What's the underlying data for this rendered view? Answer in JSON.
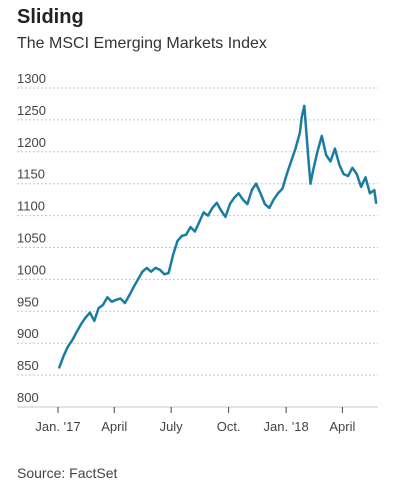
{
  "title": "Sliding",
  "subtitle": "The MSCI Emerging Markets Index",
  "source": "Source: FactSet",
  "chart_data": {
    "type": "line",
    "title": "Sliding",
    "subtitle": "The MSCI Emerging Markets Index",
    "ylim": [
      800,
      1300
    ],
    "yticks": [
      800,
      850,
      900,
      950,
      1000,
      1050,
      1100,
      1150,
      1200,
      1250,
      1300
    ],
    "ytick_labels": [
      "800",
      "850",
      "900",
      "950",
      "1000",
      "1050",
      "1100",
      "1150",
      "1200",
      "1250",
      "1300"
    ],
    "xlim": [
      "2017-01-01",
      "2018-05-28"
    ],
    "xticks": [
      "2017-01-01",
      "2017-04-01",
      "2017-07-01",
      "2017-10-01",
      "2018-01-01",
      "2018-04-01"
    ],
    "xtick_labels": [
      "Jan. '17",
      "April",
      "July",
      "Oct.",
      "Jan. '18",
      "April"
    ],
    "grid": "horizontal",
    "line_color": "#1b7ca3",
    "series": [
      {
        "x": [
          "2017-01-03",
          "2017-01-10",
          "2017-01-17",
          "2017-01-24",
          "2017-01-31",
          "2017-02-07",
          "2017-02-14",
          "2017-02-21",
          "2017-02-28",
          "2017-03-07",
          "2017-03-14",
          "2017-03-21",
          "2017-03-28",
          "2017-04-04",
          "2017-04-11",
          "2017-04-18",
          "2017-04-25",
          "2017-05-02",
          "2017-05-09",
          "2017-05-16",
          "2017-05-23",
          "2017-05-30",
          "2017-06-06",
          "2017-06-13",
          "2017-06-20",
          "2017-06-27",
          "2017-07-04",
          "2017-07-11",
          "2017-07-18",
          "2017-07-25",
          "2017-08-01",
          "2017-08-08",
          "2017-08-15",
          "2017-08-22",
          "2017-08-29",
          "2017-09-05",
          "2017-09-12",
          "2017-09-19",
          "2017-09-26",
          "2017-10-03",
          "2017-10-10",
          "2017-10-17",
          "2017-10-24",
          "2017-10-31",
          "2017-11-07",
          "2017-11-14",
          "2017-11-21",
          "2017-11-28",
          "2017-12-05",
          "2017-12-12",
          "2017-12-19",
          "2017-12-26",
          "2018-01-02",
          "2018-01-09",
          "2018-01-16",
          "2018-01-23",
          "2018-01-26",
          "2018-01-30",
          "2018-02-06",
          "2018-02-09",
          "2018-02-13",
          "2018-02-20",
          "2018-02-27",
          "2018-03-06",
          "2018-03-13",
          "2018-03-20",
          "2018-03-27",
          "2018-04-03",
          "2018-04-10",
          "2018-04-17",
          "2018-04-24",
          "2018-05-01",
          "2018-05-08",
          "2018-05-15",
          "2018-05-22",
          "2018-05-25"
        ],
        "values": [
          862,
          880,
          895,
          905,
          918,
          930,
          940,
          948,
          935,
          955,
          960,
          972,
          965,
          968,
          970,
          963,
          975,
          988,
          1000,
          1012,
          1018,
          1012,
          1018,
          1015,
          1008,
          1010,
          1038,
          1060,
          1068,
          1070,
          1082,
          1075,
          1090,
          1105,
          1100,
          1112,
          1120,
          1108,
          1098,
          1118,
          1128,
          1135,
          1125,
          1118,
          1140,
          1150,
          1135,
          1118,
          1112,
          1125,
          1135,
          1142,
          1165,
          1185,
          1205,
          1230,
          1255,
          1272,
          1185,
          1150,
          1170,
          1200,
          1225,
          1195,
          1185,
          1205,
          1180,
          1165,
          1162,
          1175,
          1165,
          1145,
          1160,
          1135,
          1140,
          1120
        ]
      }
    ]
  }
}
